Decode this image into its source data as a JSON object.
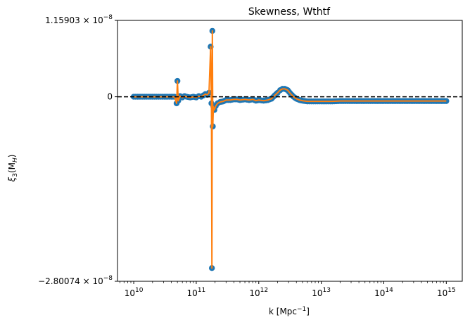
{
  "chart_data": {
    "type": "line",
    "title": "Skewness, Wthtf",
    "xlabel_base": "k [Mpc",
    "xlabel_exp": "−1",
    "xlabel_close": "]",
    "ylabel_main": "ξ",
    "ylabel_sub": "3",
    "ylabel_paren": "(M",
    "ylabel_sub2": "H",
    "ylabel_close": ")",
    "x_scale": "log",
    "xlim": [
      5500000000.0,
      1800000000000000.0
    ],
    "ylim": [
      -2.80074e-08,
      1.15903e-08
    ],
    "x_ticks": [
      {
        "value": 10000000000.0,
        "base": "10",
        "exp": "10"
      },
      {
        "value": 100000000000.0,
        "base": "10",
        "exp": "11"
      },
      {
        "value": 1000000000000.0,
        "base": "10",
        "exp": "12"
      },
      {
        "value": 10000000000000.0,
        "base": "10",
        "exp": "13"
      },
      {
        "value": 100000000000000.0,
        "base": "10",
        "exp": "14"
      },
      {
        "value": 1000000000000000.0,
        "base": "10",
        "exp": "15"
      }
    ],
    "y_ticks": [
      {
        "value": 1.15903e-08,
        "mant": "1.15903",
        "times": "×",
        "base": "10",
        "exp": "−8"
      },
      {
        "value": 0,
        "mant": "0"
      },
      {
        "value": -2.80074e-08,
        "mant": "−2.80074",
        "times": "×",
        "base": "10",
        "exp": "−8"
      }
    ],
    "reference_line": {
      "y": 0,
      "style": "dashed",
      "color": "#000000"
    },
    "grid": false,
    "series": [
      {
        "marker_color": "#1f77b4",
        "line_color": "#ff7f0e",
        "points": [
          [
            10000000000.0,
            0.0
          ],
          [
            11500000000.0,
            0.0
          ],
          [
            13000000000.0,
            0.0
          ],
          [
            15000000000.0,
            0.0
          ],
          [
            17500000000.0,
            0.0
          ],
          [
            20000000000.0,
            0.0
          ],
          [
            23000000000.0,
            0.0
          ],
          [
            27000000000.0,
            0.0
          ],
          [
            31000000000.0,
            0.0
          ],
          [
            35000000000.0,
            0.0
          ],
          [
            40000000000.0,
            0.0
          ],
          [
            45000000000.0,
            0.0
          ],
          [
            48500000000.0,
            -1e-09
          ],
          [
            50000000000.0,
            2.4e-09
          ],
          [
            51500000000.0,
            -6e-10
          ],
          [
            55000000000.0,
            1e-10
          ],
          [
            60000000000.0,
            -1e-10
          ],
          [
            65000000000.0,
            1e-10
          ],
          [
            70000000000.0,
            0.0
          ],
          [
            80000000000.0,
            -1e-10
          ],
          [
            90000000000.0,
            0.0
          ],
          [
            100000000000.0,
            -1e-10
          ],
          [
            110000000000.0,
            1e-10
          ],
          [
            120000000000.0,
            0.0
          ],
          [
            130000000000.0,
            2e-10
          ],
          [
            140000000000.0,
            4e-10
          ],
          [
            150000000000.0,
            3e-10
          ],
          [
            160000000000.0,
            6e-10
          ],
          [
            170000000000.0,
            7.6e-09
          ],
          [
            175000000000.0,
            -1e-09
          ],
          [
            178000000000.0,
            -2.6e-08
          ],
          [
            181000000000.0,
            1e-08
          ],
          [
            184000000000.0,
            -4.5e-09
          ],
          [
            188000000000.0,
            -1.5e-09
          ],
          [
            195000000000.0,
            -2e-09
          ],
          [
            205000000000.0,
            -1.4e-09
          ],
          [
            220000000000.0,
            -1e-09
          ],
          [
            240000000000.0,
            -8e-10
          ],
          [
            270000000000.0,
            -7e-10
          ],
          [
            300000000000.0,
            -5e-10
          ],
          [
            350000000000.0,
            -5e-10
          ],
          [
            400000000000.0,
            -4e-10
          ],
          [
            450000000000.0,
            -4e-10
          ],
          [
            500000000000.0,
            -5e-10
          ],
          [
            600000000000.0,
            -4e-10
          ],
          [
            700000000000.0,
            -5e-10
          ],
          [
            800000000000.0,
            -4e-10
          ],
          [
            900000000000.0,
            -6e-10
          ],
          [
            1000000000000.0,
            -5e-10
          ],
          [
            1200000000000.0,
            -6e-10
          ],
          [
            1400000000000.0,
            -5e-10
          ],
          [
            1600000000000.0,
            -3e-10
          ],
          [
            1800000000000.0,
            2e-10
          ],
          [
            2000000000000.0,
            6e-10
          ],
          [
            2200000000000.0,
            1e-09
          ],
          [
            2400000000000.0,
            1.2e-09
          ],
          [
            2600000000000.0,
            1.2e-09
          ],
          [
            2900000000000.0,
            1e-09
          ],
          [
            3200000000000.0,
            5e-10
          ],
          [
            3600000000000.0,
            0.0
          ],
          [
            4000000000000.0,
            -3e-10
          ],
          [
            4500000000000.0,
            -5e-10
          ],
          [
            5000000000000.0,
            -6e-10
          ],
          [
            6000000000000.0,
            -7e-10
          ],
          [
            7500000000000.0,
            -7e-10
          ],
          [
            10000000000000.0,
            -7e-10
          ],
          [
            15000000000000.0,
            -7e-10
          ],
          [
            20000000000000.0,
            -6.5e-10
          ],
          [
            30000000000000.0,
            -6.5e-10
          ],
          [
            50000000000000.0,
            -6.5e-10
          ],
          [
            70000000000000.0,
            -6.5e-10
          ],
          [
            100000000000000.0,
            -6.5e-10
          ],
          [
            200000000000000.0,
            -6.5e-10
          ],
          [
            400000000000000.0,
            -6.5e-10
          ],
          [
            700000000000000.0,
            -6.5e-10
          ],
          [
            1000000000000000.0,
            -6.5e-10
          ]
        ]
      }
    ]
  }
}
